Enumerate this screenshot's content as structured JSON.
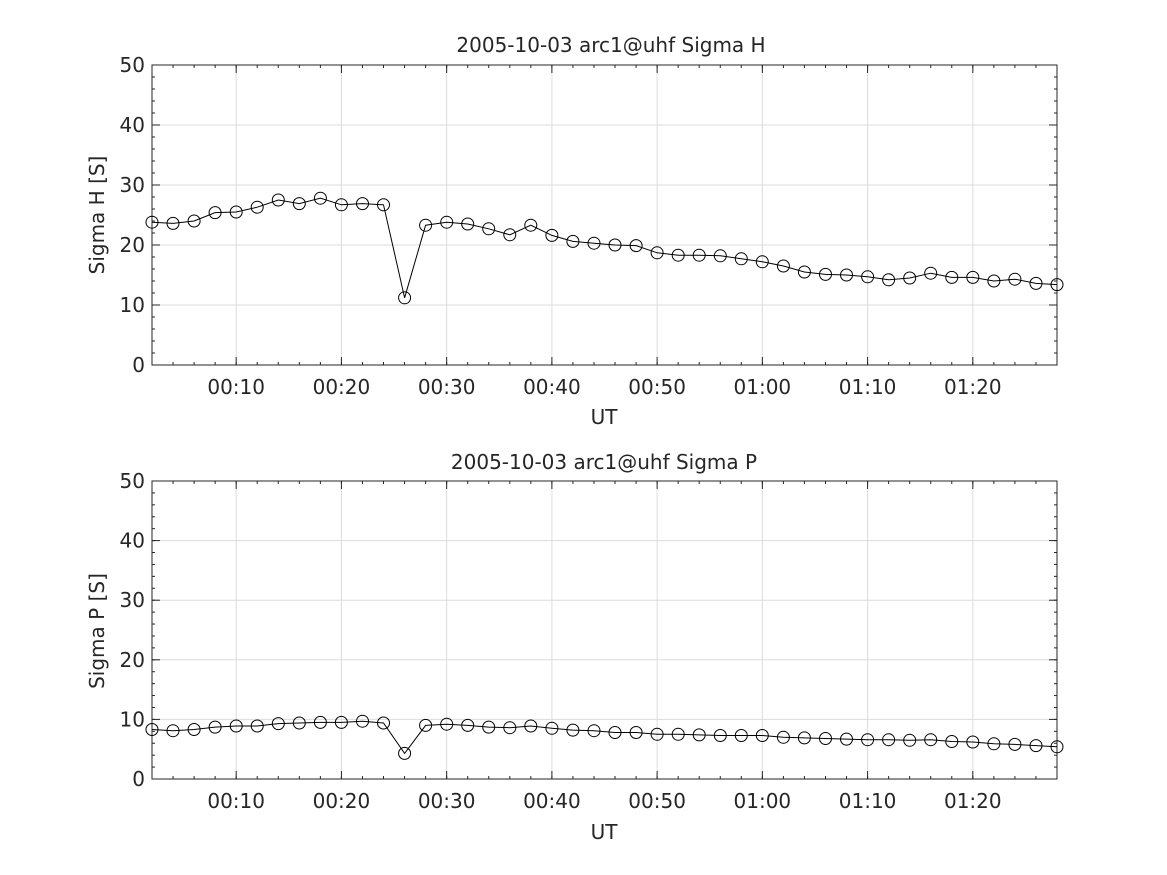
{
  "figure": {
    "background": "#ffffff",
    "line_color": "#000000",
    "grid_color": "#dcdcdc",
    "marker": "open-circle"
  },
  "chart_data": [
    {
      "type": "line",
      "title": "2005-10-03  arc1@uhf Sigma H",
      "xlabel": "UT",
      "ylabel": "Sigma H [S]",
      "xlim": [
        "00:02",
        "01:28"
      ],
      "ylim": [
        0,
        50
      ],
      "xticks": [
        "00:10",
        "00:20",
        "00:30",
        "00:40",
        "00:50",
        "01:00",
        "01:10",
        "01:20"
      ],
      "yticks": [
        0,
        10,
        20,
        30,
        40,
        50
      ],
      "grid": true,
      "series": [
        {
          "x": [
            "00:02",
            "00:04",
            "00:06",
            "00:08",
            "00:10",
            "00:12",
            "00:14",
            "00:16",
            "00:18",
            "00:20",
            "00:22",
            "00:24",
            "00:26",
            "00:28",
            "00:30",
            "00:32",
            "00:34",
            "00:36",
            "00:38",
            "00:40",
            "00:42",
            "00:44",
            "00:46",
            "00:48",
            "00:50",
            "00:52",
            "00:54",
            "00:56",
            "00:58",
            "01:00",
            "01:02",
            "01:04",
            "01:06",
            "01:08",
            "01:10",
            "01:12",
            "01:14",
            "01:16",
            "01:18",
            "01:20",
            "01:22",
            "01:24",
            "01:26",
            "01:28"
          ],
          "values": [
            23.8,
            23.6,
            24.0,
            25.4,
            25.5,
            26.3,
            27.5,
            26.9,
            27.8,
            26.7,
            26.9,
            26.7,
            11.2,
            23.3,
            23.8,
            23.5,
            22.7,
            21.7,
            23.3,
            21.6,
            20.6,
            20.3,
            20.0,
            19.9,
            18.7,
            18.3,
            18.3,
            18.2,
            17.7,
            17.2,
            16.5,
            15.5,
            15.1,
            15.0,
            14.7,
            14.2,
            14.5,
            15.3,
            14.6,
            14.6,
            14.0,
            14.3,
            13.6,
            13.4
          ]
        }
      ]
    },
    {
      "type": "line",
      "title": "2005-10-03  arc1@uhf Sigma P",
      "xlabel": "UT",
      "ylabel": "Sigma P [S]",
      "xlim": [
        "00:02",
        "01:28"
      ],
      "ylim": [
        0,
        50
      ],
      "xticks": [
        "00:10",
        "00:20",
        "00:30",
        "00:40",
        "00:50",
        "01:00",
        "01:10",
        "01:20"
      ],
      "yticks": [
        0,
        10,
        20,
        30,
        40,
        50
      ],
      "grid": true,
      "series": [
        {
          "x": [
            "00:02",
            "00:04",
            "00:06",
            "00:08",
            "00:10",
            "00:12",
            "00:14",
            "00:16",
            "00:18",
            "00:20",
            "00:22",
            "00:24",
            "00:26",
            "00:28",
            "00:30",
            "00:32",
            "00:34",
            "00:36",
            "00:38",
            "00:40",
            "00:42",
            "00:44",
            "00:46",
            "00:48",
            "00:50",
            "00:52",
            "00:54",
            "00:56",
            "00:58",
            "01:00",
            "01:02",
            "01:04",
            "01:06",
            "01:08",
            "01:10",
            "01:12",
            "01:14",
            "01:16",
            "01:18",
            "01:20",
            "01:22",
            "01:24",
            "01:26",
            "01:28"
          ],
          "values": [
            8.3,
            8.1,
            8.3,
            8.7,
            8.9,
            8.9,
            9.3,
            9.4,
            9.5,
            9.5,
            9.7,
            9.4,
            4.3,
            9.0,
            9.2,
            9.0,
            8.7,
            8.6,
            8.9,
            8.5,
            8.2,
            8.1,
            7.8,
            7.8,
            7.5,
            7.5,
            7.4,
            7.3,
            7.3,
            7.3,
            7.0,
            6.9,
            6.8,
            6.7,
            6.6,
            6.6,
            6.5,
            6.6,
            6.3,
            6.2,
            5.9,
            5.8,
            5.6,
            5.4
          ]
        }
      ]
    }
  ]
}
